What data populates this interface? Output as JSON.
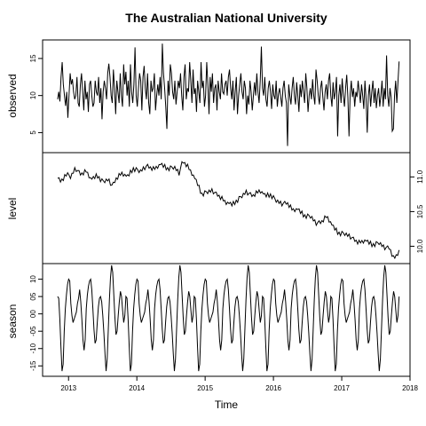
{
  "chart_data": {
    "type": "line",
    "title": "The Australian National University",
    "xlabel": "Time",
    "xlim": [
      2012.62,
      2018.0
    ],
    "x_ticks": [
      "2013",
      "2014",
      "2015",
      "2016",
      "2017",
      "2018"
    ],
    "x_tick_values": [
      2013,
      2014,
      2015,
      2016,
      2017,
      2018
    ],
    "x_start": 2012.84,
    "x_end": 2017.84,
    "panels": [
      {
        "name": "observed",
        "ylabel": "observed",
        "ylim": [
          2.3,
          17.5
        ],
        "y_ticks": [
          "5",
          "10",
          "15"
        ],
        "y_tick_values": [
          5,
          10,
          15
        ],
        "values": [
          9.5,
          10.5,
          9.2,
          12.5,
          14.5,
          11.5,
          10,
          8.6,
          10.5,
          7,
          10,
          13,
          11.5,
          12.2,
          10.5,
          9.5,
          10,
          12.5,
          9,
          8.5,
          11.5,
          13,
          10.5,
          8,
          12,
          9.5,
          10.5,
          7.8,
          11.5,
          12,
          10,
          8.5,
          9,
          12,
          10.5,
          10,
          12.5,
          9,
          11,
          6.8,
          10.5,
          12,
          11,
          9.5,
          13,
          14.3,
          12.5,
          10,
          9,
          13.5,
          11,
          7.5,
          12,
          10.5,
          9,
          13,
          10,
          8.5,
          14.2,
          11.5,
          13.2,
          10,
          12,
          8.5,
          14.2,
          10.5,
          9,
          11.5,
          16.5,
          10,
          8.5,
          11,
          13,
          12,
          8,
          12.5,
          14,
          11,
          9.5,
          13,
          9,
          7.5,
          12,
          10.5,
          11,
          13,
          8,
          10,
          11.5,
          10,
          12.5,
          9.5,
          17,
          13,
          11,
          8.5,
          5.5,
          12,
          10,
          14.2,
          13,
          10.5,
          9.5,
          12,
          8.8,
          10.5,
          12,
          11,
          13,
          10,
          8,
          12.5,
          14.2,
          9.5,
          11,
          10.5,
          14.5,
          12,
          9,
          13.5,
          10.2,
          11,
          7.8,
          12,
          10.5,
          9,
          14.5,
          11,
          12,
          8.5,
          10,
          14.5,
          11.5,
          7.5,
          12.5,
          10.5,
          13,
          9,
          11,
          11.5,
          8,
          12,
          10.5,
          9.5,
          13,
          10.5,
          10.2,
          11.5,
          12,
          10,
          12.5,
          13.5,
          11,
          9.5,
          12,
          8,
          10.5,
          12.5,
          7.5,
          10,
          11.5,
          13,
          10.5,
          9.5,
          12,
          11,
          7.5,
          10,
          8.8,
          12,
          10.5,
          8,
          10,
          11.8,
          10,
          13,
          10.5,
          9,
          12,
          16.6,
          11,
          10,
          12.5,
          9.5,
          8.5,
          11,
          12,
          10.5,
          8.2,
          11.5,
          10,
          9.5,
          12,
          8.5,
          10.2,
          11,
          9.8,
          8.5,
          11,
          12,
          10,
          9,
          3.2,
          11.5,
          10,
          8.8,
          11,
          12.5,
          10,
          8.8,
          11.8,
          10,
          7.8,
          11.5,
          9.8,
          12,
          10.5,
          9,
          13,
          11,
          7.8,
          10,
          11,
          9.5,
          12.2,
          10,
          8.8,
          13.5,
          12,
          10,
          8.8,
          11,
          12,
          9.8,
          8,
          10.5,
          11.5,
          9.5,
          12,
          13,
          10,
          8.5,
          11.8,
          9.5,
          10.5,
          12.5,
          4.5,
          10,
          11.5,
          9,
          12.3,
          10,
          8.5,
          11,
          12.8,
          9.8,
          4.5,
          10.2,
          12,
          9.8,
          11,
          8.5,
          10.5,
          9.8,
          12,
          10.5,
          9,
          11.5,
          10,
          8.2,
          12,
          9.5,
          5,
          10,
          11.5,
          8.5,
          10.5,
          12,
          9,
          11,
          8.3,
          10,
          11,
          8.5,
          10,
          12,
          8.5,
          11,
          9.5,
          15.4,
          10,
          8.5,
          11,
          9.8,
          5.2,
          5.5,
          10,
          12,
          9,
          11.8,
          14.6
        ]
      },
      {
        "name": "level",
        "ylabel": "level",
        "ylim": [
          9.75,
          11.35
        ],
        "y_ticks": [
          "10.0",
          "10.5",
          "11.0"
        ],
        "y_tick_values": [
          10.0,
          10.5,
          11.0
        ],
        "knots": [
          [
            2012.84,
            10.98
          ],
          [
            2012.9,
            10.93
          ],
          [
            2012.96,
            11.05
          ],
          [
            2013.03,
            11.0
          ],
          [
            2013.1,
            11.12
          ],
          [
            2013.18,
            11.04
          ],
          [
            2013.26,
            11.08
          ],
          [
            2013.33,
            10.96
          ],
          [
            2013.42,
            11.02
          ],
          [
            2013.5,
            10.93
          ],
          [
            2013.58,
            10.96
          ],
          [
            2013.64,
            10.87
          ],
          [
            2013.7,
            10.98
          ],
          [
            2013.78,
            11.05
          ],
          [
            2013.86,
            11.0
          ],
          [
            2013.95,
            11.12
          ],
          [
            2014.05,
            11.08
          ],
          [
            2014.15,
            11.16
          ],
          [
            2014.25,
            11.11
          ],
          [
            2014.35,
            11.18
          ],
          [
            2014.45,
            11.12
          ],
          [
            2014.55,
            11.14
          ],
          [
            2014.62,
            11.05
          ],
          [
            2014.67,
            11.23
          ],
          [
            2014.73,
            11.17
          ],
          [
            2014.8,
            11.06
          ],
          [
            2014.88,
            10.92
          ],
          [
            2014.95,
            10.75
          ],
          [
            2015.02,
            10.78
          ],
          [
            2015.1,
            10.8
          ],
          [
            2015.2,
            10.73
          ],
          [
            2015.3,
            10.63
          ],
          [
            2015.4,
            10.6
          ],
          [
            2015.5,
            10.69
          ],
          [
            2015.6,
            10.78
          ],
          [
            2015.7,
            10.73
          ],
          [
            2015.8,
            10.8
          ],
          [
            2015.88,
            10.73
          ],
          [
            2015.96,
            10.74
          ],
          [
            2016.04,
            10.66
          ],
          [
            2016.12,
            10.61
          ],
          [
            2016.2,
            10.63
          ],
          [
            2016.28,
            10.52
          ],
          [
            2016.36,
            10.53
          ],
          [
            2016.45,
            10.44
          ],
          [
            2016.55,
            10.43
          ],
          [
            2016.62,
            10.33
          ],
          [
            2016.7,
            10.35
          ],
          [
            2016.78,
            10.43
          ],
          [
            2016.86,
            10.3
          ],
          [
            2016.95,
            10.19
          ],
          [
            2017.05,
            10.18
          ],
          [
            2017.15,
            10.12
          ],
          [
            2017.25,
            10.05
          ],
          [
            2017.35,
            10.08
          ],
          [
            2017.45,
            10.02
          ],
          [
            2017.55,
            10.05
          ],
          [
            2017.62,
            9.98
          ],
          [
            2017.7,
            9.98
          ],
          [
            2017.76,
            9.82
          ],
          [
            2017.8,
            9.86
          ],
          [
            2017.84,
            9.93
          ]
        ],
        "wiggle": [
          0,
          0.025,
          -0.02,
          0.035,
          -0.03,
          0.015,
          -0.035,
          0.03,
          0.01,
          -0.025,
          0.02,
          -0.015,
          0.03,
          -0.03,
          0.005,
          0.025,
          -0.02,
          0.01,
          -0.03,
          0.035,
          -0.01,
          0.02,
          -0.025,
          0.015
        ]
      },
      {
        "name": "season",
        "ylabel": "season",
        "ylim": [
          -18,
          14.5
        ],
        "y_ticks": [
          "-15",
          "-10",
          "-05",
          "00",
          "05",
          "10"
        ],
        "y_tick_values": [
          -15,
          -10,
          -5,
          0,
          5,
          10
        ],
        "cycle": [
          5,
          4.5,
          -1.5,
          -9.5,
          -16.5,
          -14.5,
          -5,
          1.5,
          5.5,
          8.5,
          10,
          9.5,
          3,
          -0.5,
          -2.5,
          -1.5,
          -0.5,
          0.5,
          3,
          4.5,
          7,
          3.5,
          -1.5,
          -7.5,
          -10.5,
          -7.5,
          1.5,
          5.5,
          8,
          9.5,
          10,
          7,
          1.5,
          -4.5,
          -8.5,
          -7.5,
          -2.5,
          2,
          4.5,
          5,
          3.5,
          -0.5,
          -5.5,
          -11.5,
          -16.5,
          -13,
          -4.5,
          4,
          10.5,
          14,
          12,
          5.5,
          -1,
          -6,
          -5,
          -0.5,
          3.5,
          6.5,
          5,
          1,
          -2.5,
          -0.5
        ]
      }
    ]
  }
}
